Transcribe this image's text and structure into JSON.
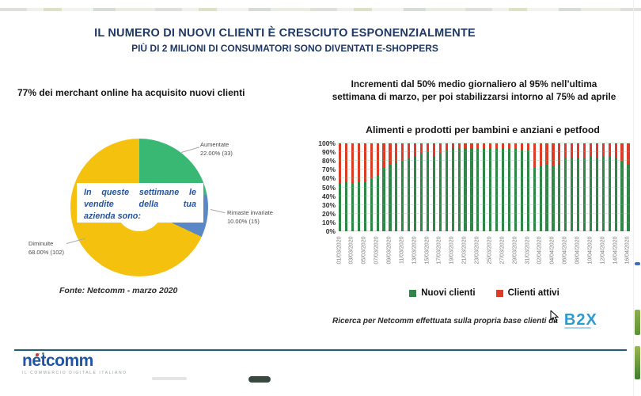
{
  "slide": {
    "title": "IL NUMERO DI NUOVI CLIENTI È CRESCIUTO ESPONENZIALMENTE",
    "subtitle": "PIÙ DI 2 MILIONI DI CONSUMATORI SONO DIVENTATI E-SHOPPERS"
  },
  "left": {
    "heading": "77% dei merchant online ha acquisito nuovi clienti",
    "source": "Fonte: Netcomm - marzo 2020",
    "center_note_lines": [
      "In queste settimane le",
      "vendite della tua",
      "azienda sono:"
    ]
  },
  "right": {
    "heading_lines": [
      "Incrementi dal 50% medio giornaliero al 95% nell’ultima",
      "settimana di marzo, per poi stabilizzarsi intorno al 75% ad aprile"
    ],
    "footnote": "Ricerca per Netcomm effettuata sulla propria base clienti da",
    "b2x_logo": "B2X"
  },
  "footer": {
    "logo": "nétcomm",
    "tagline": "IL COMMERCIO DIGITALE ITALIANO"
  },
  "colors": {
    "title_navy": "#1f3864",
    "pie_yellow": "#f4c10f",
    "pie_green": "#39b874",
    "pie_blue": "#5a87c6",
    "bar_green": "#2e8647",
    "bar_red": "#dc3b26"
  },
  "chart_data": [
    {
      "type": "pie",
      "style": "donut",
      "center_label": "In queste settimane le vendite della tua azienda sono:",
      "slices": [
        {
          "label": "Aumentate",
          "percent": 22.0,
          "count": 33,
          "display": "22.00% (33)",
          "color": "#39b874"
        },
        {
          "label": "Rimaste invariate",
          "percent": 10.0,
          "count": 15,
          "display": "10.00% (15)",
          "color": "#5a87c6"
        },
        {
          "label": "Diminuite",
          "percent": 68.0,
          "count": 102,
          "display": "68.00% (102)",
          "color": "#f4c10f"
        }
      ],
      "source": "Fonte: Netcomm - marzo 2020"
    },
    {
      "type": "bar",
      "stacked": true,
      "title": "Alimenti e prodotti per bambini e anziani e petfood",
      "ylim": [
        0,
        100
      ],
      "ytick_step": 10,
      "ytick_suffix": "%",
      "tick_every": 2,
      "grid": true,
      "legend_position": "bottom",
      "x": [
        "01/03/2020",
        "02/03/2020",
        "03/03/2020",
        "04/03/2020",
        "05/03/2020",
        "06/03/2020",
        "07/03/2020",
        "08/03/2020",
        "09/03/2020",
        "10/03/2020",
        "11/03/2020",
        "12/03/2020",
        "13/03/2020",
        "14/03/2020",
        "15/03/2020",
        "16/03/2020",
        "17/03/2020",
        "18/03/2020",
        "19/03/2020",
        "20/03/2020",
        "21/03/2020",
        "22/03/2020",
        "23/03/2020",
        "24/03/2020",
        "25/03/2020",
        "26/03/2020",
        "27/03/2020",
        "28/03/2020",
        "29/03/2020",
        "30/03/2020",
        "31/03/2020",
        "01/04/2020",
        "02/04/2020",
        "03/04/2020",
        "04/04/2020",
        "05/04/2020",
        "06/04/2020",
        "07/04/2020",
        "08/04/2020",
        "09/04/2020",
        "10/04/2020",
        "11/04/2020",
        "12/04/2020",
        "13/04/2020",
        "14/04/2020",
        "15/04/2020",
        "16/04/2020"
      ],
      "series": [
        {
          "name": "Nuovi clienti",
          "color": "#2e8647",
          "values": [
            55,
            56,
            55,
            56,
            57,
            60,
            63,
            73,
            76,
            78,
            80,
            83,
            86,
            88,
            90,
            85,
            88,
            93,
            95,
            94,
            95,
            95,
            94,
            95,
            95,
            94,
            95,
            95,
            94,
            93,
            92,
            73,
            75,
            76,
            74,
            77,
            83,
            84,
            83,
            84,
            85,
            84,
            85,
            86,
            83,
            80,
            77
          ]
        },
        {
          "name": "Clienti attivi",
          "color": "#dc3b26",
          "values": [
            45,
            44,
            45,
            44,
            43,
            40,
            37,
            27,
            24,
            22,
            20,
            17,
            14,
            12,
            10,
            15,
            12,
            7,
            5,
            6,
            5,
            5,
            6,
            5,
            5,
            6,
            5,
            5,
            6,
            7,
            8,
            27,
            25,
            24,
            26,
            23,
            17,
            16,
            17,
            16,
            15,
            16,
            15,
            14,
            17,
            20,
            23
          ]
        }
      ]
    }
  ]
}
